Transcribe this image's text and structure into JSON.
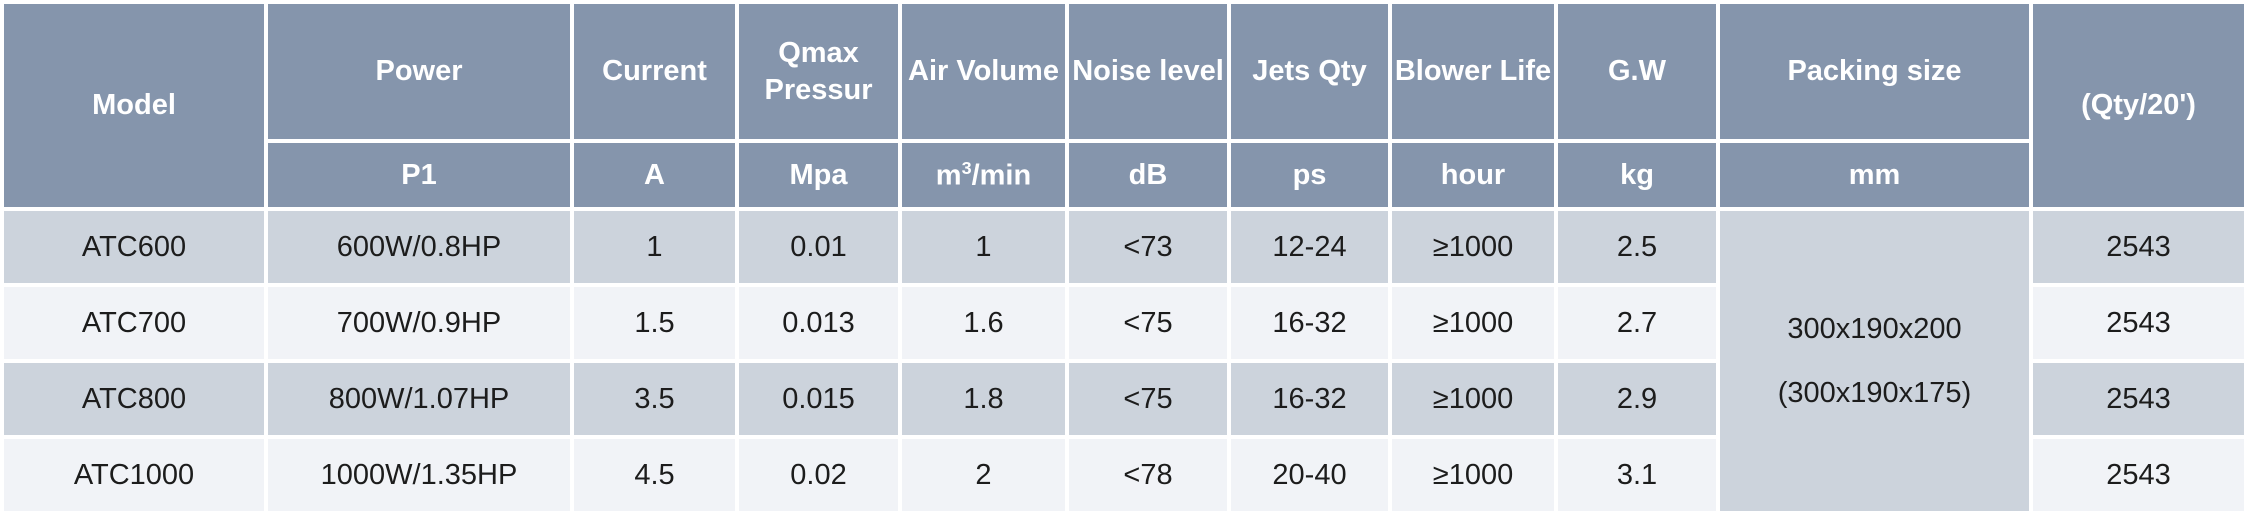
{
  "table": {
    "header": {
      "model": "Model",
      "power": "Power",
      "current": "Current",
      "qmax_pressure": "Qmax Pressur",
      "air_volume": "Air Volume",
      "noise_level": "Noise level",
      "jets_qty": "Jets Qty",
      "blower_life": "Blower Life",
      "gw": "G.W",
      "packing_size": "Packing size",
      "qty_per_20ft": "(Qty/20')"
    },
    "units": {
      "power": "P1",
      "current": "A",
      "qmax_pressure": "Mpa",
      "air_volume": "m³/min",
      "noise_level": "dB",
      "jets_qty": "ps",
      "blower_life": "hour",
      "gw": "kg",
      "packing_size": "mm"
    },
    "rows": [
      {
        "model": "ATC600",
        "power": "600W/0.8HP",
        "current": "1",
        "qmax": "0.01",
        "air": "1",
        "noise": "<73",
        "jets": "12-24",
        "blower": "≥1000",
        "gw": "2.5",
        "qty20": "2543"
      },
      {
        "model": "ATC700",
        "power": "700W/0.9HP",
        "current": "1.5",
        "qmax": "0.013",
        "air": "1.6",
        "noise": "<75",
        "jets": "16-32",
        "blower": "≥1000",
        "gw": "2.7",
        "qty20": "2543"
      },
      {
        "model": "ATC800",
        "power": "800W/1.07HP",
        "current": "3.5",
        "qmax": "0.015",
        "air": "1.8",
        "noise": "<75",
        "jets": "16-32",
        "blower": "≥1000",
        "gw": "2.9",
        "qty20": "2543"
      },
      {
        "model": "ATC1000",
        "power": "1000W/1.35HP",
        "current": "4.5",
        "qmax": "0.02",
        "air": "2",
        "noise": "<78",
        "jets": "20-40",
        "blower": "≥1000",
        "gw": "3.1",
        "qty20": "2543"
      }
    ],
    "packing_size_merged": {
      "line1": "300x190x200",
      "line2": "(300x190x175)"
    }
  },
  "colors": {
    "header_bg": "#8595ac",
    "row_odd_bg": "#ccd3dc",
    "row_even_bg": "#f1f3f7",
    "grid": "#ffffff",
    "header_text": "#ffffff",
    "body_text": "#1c1c1c"
  }
}
